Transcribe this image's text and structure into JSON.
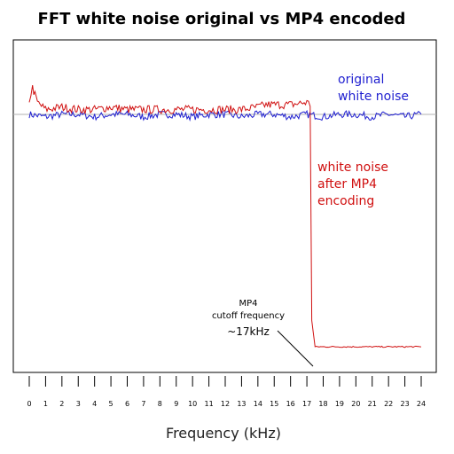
{
  "chart_data": {
    "type": "line",
    "title": "FFT white noise original vs MP4 encoded",
    "xlabel": "Frequency (kHz)",
    "ylabel": "",
    "xlim": [
      0,
      24
    ],
    "x_ticks": [
      "0",
      "1",
      "2",
      "3",
      "4",
      "5",
      "6",
      "7",
      "8",
      "9",
      "10",
      "11",
      "12",
      "13",
      "14",
      "15",
      "16",
      "17",
      "18",
      "19",
      "20",
      "21",
      "22",
      "23",
      "24"
    ],
    "series": [
      {
        "key": "original",
        "color": "#1f1fd0",
        "x": [
          0,
          1,
          2,
          3,
          4,
          5,
          6,
          7,
          8,
          9,
          10,
          11,
          12,
          13,
          14,
          15,
          16,
          17,
          18,
          19,
          20,
          21,
          22,
          23,
          24
        ],
        "y": [
          1.0,
          0.99,
          1.0,
          1.0,
          0.99,
          1.0,
          1.0,
          0.99,
          1.0,
          1.0,
          0.99,
          1.0,
          1.0,
          0.99,
          1.0,
          1.0,
          0.99,
          1.0,
          0.99,
          1.0,
          1.0,
          0.99,
          1.0,
          0.99,
          1.0
        ]
      },
      {
        "key": "after_mp4",
        "color": "#d01010",
        "x": [
          0,
          0.2,
          0.5,
          1,
          2,
          3,
          4,
          5,
          6,
          7,
          8,
          9,
          10,
          11,
          12,
          13,
          14,
          14.5,
          15,
          16,
          17,
          17.2,
          17.3,
          17.5,
          18,
          19,
          20,
          21,
          22,
          23,
          24
        ],
        "y": [
          1.06,
          1.11,
          1.05,
          1.02,
          1.03,
          1.02,
          1.02,
          1.03,
          1.02,
          1.02,
          1.02,
          1.02,
          1.02,
          1.02,
          1.02,
          1.02,
          1.03,
          1.04,
          1.04,
          1.04,
          1.05,
          1.04,
          0.15,
          0.04,
          0.04,
          0.04,
          0.04,
          0.04,
          0.04,
          0.04,
          0.04
        ]
      }
    ],
    "annotations": {
      "original_line1": "original",
      "original_line2": "white noise",
      "mp4_line1": "white noise",
      "mp4_line2": "after MP4",
      "mp4_line3": "encoding",
      "cutoff_line1": "MP4",
      "cutoff_line2": "cutoff frequency",
      "cutoff_line3": "~17kHz"
    },
    "reference_line": {
      "y": 1.0,
      "color": "#b0b0b0"
    }
  }
}
